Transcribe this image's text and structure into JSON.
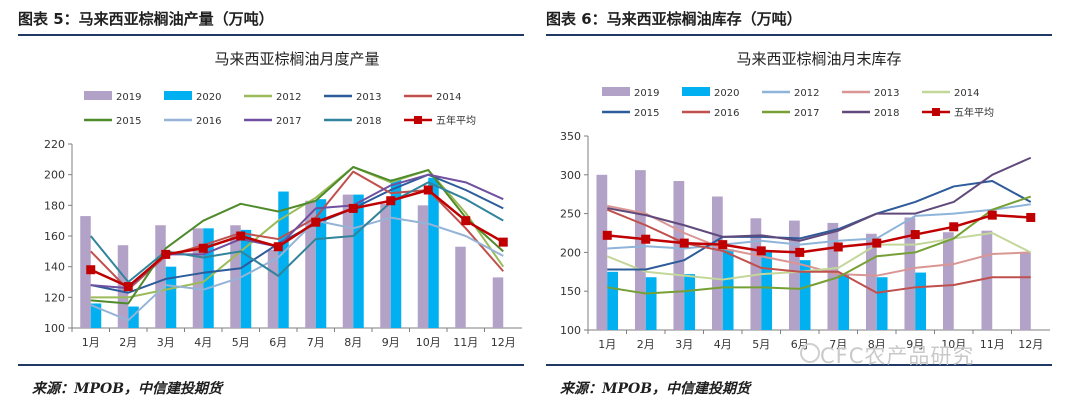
{
  "figures": [
    {
      "fig_title": "图表 5：马来西亚棕榈油产量（万吨）",
      "source": "来源：MPOB，中信建投期货",
      "chart_data": {
        "type": "bar",
        "title": "马来西亚棕榈油月度产量",
        "categories": [
          "1月",
          "2月",
          "3月",
          "4月",
          "5月",
          "6月",
          "7月",
          "8月",
          "9月",
          "10月",
          "11月",
          "12月"
        ],
        "ylim": [
          100,
          220
        ],
        "yticks": [
          100,
          120,
          140,
          160,
          180,
          200,
          220
        ],
        "bars": [
          {
            "name": "2019",
            "color": "#b3a2c7",
            "values": [
              173,
              154,
              167,
              165,
              167,
              151,
              183,
              187,
              181,
              180,
              153,
              133
            ]
          },
          {
            "name": "2020",
            "color": "#00b0f0",
            "values": [
              116,
              114,
              140,
              165,
              164,
              189,
              184,
              187,
              197,
              198,
              null,
              null
            ]
          }
        ],
        "lines": [
          {
            "name": "2012",
            "color": "#9bbb59",
            "values": [
              120,
              120,
              125,
              130,
              150,
              170,
              185,
              205,
              195,
              203,
              175,
              140
            ]
          },
          {
            "name": "2013",
            "color": "#2e5b9a",
            "values": [
              128,
              123,
              132,
              136,
              139,
              155,
              168,
              178,
              190,
              200,
              190,
              178
            ]
          },
          {
            "name": "2014",
            "color": "#c0504d",
            "values": [
              150,
              125,
              147,
              154,
              162,
              158,
              172,
              202,
              188,
              190,
              165,
              137
            ]
          },
          {
            "name": "2015",
            "color": "#4f8a2b",
            "values": [
              118,
              116,
              152,
              170,
              181,
              176,
              183,
              205,
              196,
              203,
              172,
              150
            ]
          },
          {
            "name": "2016",
            "color": "#95b3d7",
            "values": [
              115,
              105,
              128,
              125,
              133,
              146,
              170,
              165,
              172,
              168,
              160,
              147
            ]
          },
          {
            "name": "2017",
            "color": "#7050a0",
            "values": [
              128,
              126,
              148,
              148,
              158,
              153,
              178,
              180,
              193,
              200,
              195,
              184
            ]
          },
          {
            "name": "2018",
            "color": "#31849b",
            "values": [
              160,
              130,
              150,
              146,
              150,
              134,
              158,
              160,
              182,
              195,
              184,
              170
            ]
          },
          {
            "name": "五年平均",
            "color": "#c00000",
            "marker": "square",
            "values": [
              138,
              127,
              148,
              152,
              160,
              153,
              169,
              178,
              183,
              190,
              170,
              156
            ]
          }
        ],
        "grid": false
      }
    },
    {
      "fig_title": "图表 6：马来西亚棕榈油库存（万吨）",
      "source": "来源：MPOB，中信建投期货",
      "chart_data": {
        "type": "bar",
        "title": "马来西亚棕榈油月末库存",
        "categories": [
          "1月",
          "2月",
          "3月",
          "4月",
          "5月",
          "6月",
          "7月",
          "8月",
          "9月",
          "10月",
          "11月",
          "12月"
        ],
        "ylim": [
          100,
          350
        ],
        "yticks": [
          100,
          150,
          200,
          250,
          300,
          350
        ],
        "bars": [
          {
            "name": "2019",
            "color": "#b3a2c7",
            "values": [
              300,
              306,
              292,
              272,
              244,
              241,
              238,
              224,
              245,
              226,
              228,
              200
            ]
          },
          {
            "name": "2020",
            "color": "#00b0f0",
            "values": [
              175,
              168,
              172,
              204,
              200,
              190,
              172,
              168,
              174,
              null,
              null,
              null
            ]
          }
        ],
        "lines": [
          {
            "name": "2012",
            "color": "#8fb4d9",
            "values": [
              205,
              208,
              205,
              210,
              215,
              210,
              215,
              218,
              247,
              250,
              255,
              262
            ]
          },
          {
            "name": "2013",
            "color": "#d99694",
            "values": [
              260,
              250,
              225,
              205,
              195,
              185,
              172,
              170,
              180,
              185,
              198,
              200
            ]
          },
          {
            "name": "2014",
            "color": "#c4d79b",
            "values": [
              195,
              175,
              170,
              165,
              172,
              175,
              180,
              210,
              210,
              218,
              225,
              200
            ]
          },
          {
            "name": "2015",
            "color": "#2e5b9a",
            "values": [
              178,
              178,
              190,
              220,
              220,
              218,
              230,
              250,
              265,
              285,
              292,
              265
            ]
          },
          {
            "name": "2016",
            "color": "#c0504d",
            "values": [
              255,
              235,
              212,
              202,
              180,
              175,
              175,
              148,
              155,
              158,
              168,
              168
            ]
          },
          {
            "name": "2017",
            "color": "#76a035",
            "values": [
              155,
              147,
              150,
              155,
              155,
              153,
              168,
              195,
              200,
              218,
              255,
              272
            ]
          },
          {
            "name": "2018",
            "color": "#604a7b",
            "values": [
              257,
              248,
              235,
              220,
              222,
              215,
              228,
              250,
              250,
              265,
              300,
              322
            ]
          },
          {
            "name": "五年平均",
            "color": "#c00000",
            "marker": "square",
            "values": [
              222,
              217,
              212,
              210,
              202,
              200,
              207,
              212,
              223,
              233,
              248,
              245
            ]
          }
        ],
        "grid": false
      }
    }
  ],
  "watermark": "CFC农产品研究"
}
